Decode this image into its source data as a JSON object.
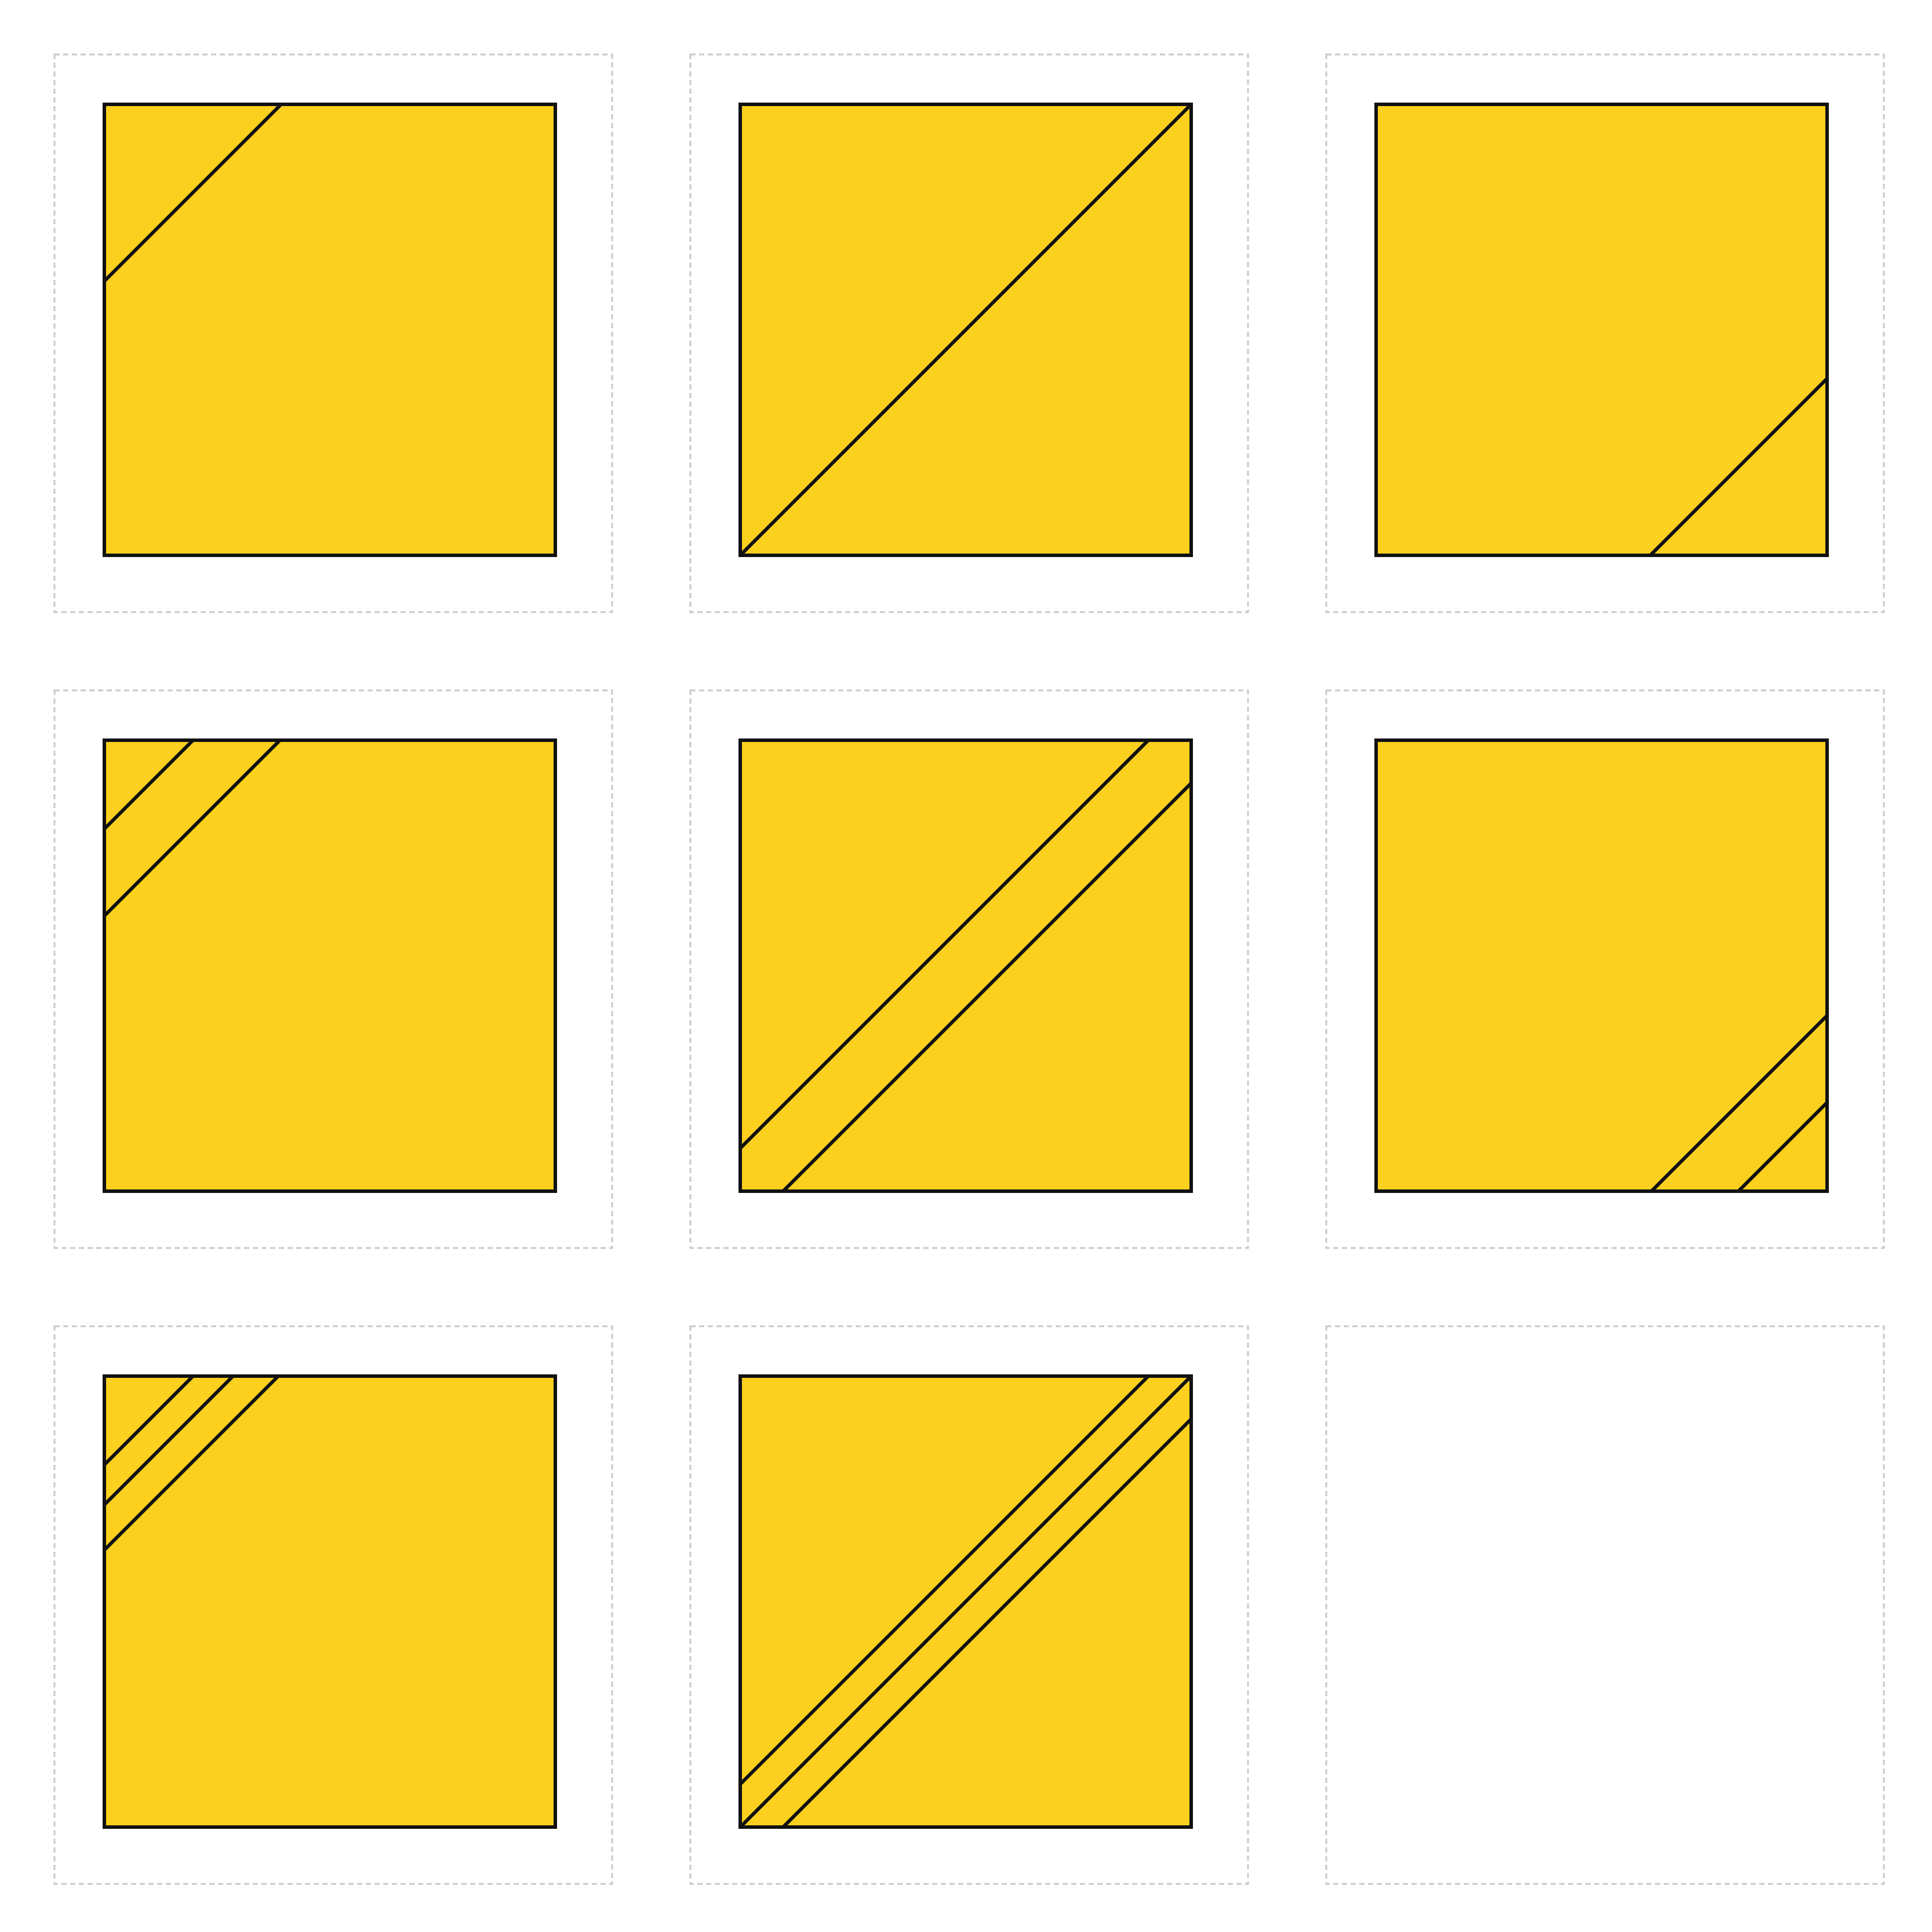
{
  "puzzle": {
    "fill_color": "#FCD01E",
    "stroke_color": "#111111",
    "cell_border_color": "#C8C8C8",
    "background_color": "#FFFFFF",
    "cells": [
      {
        "row": 1,
        "col": 1,
        "line_count": 1,
        "corner": "top-left",
        "empty": false
      },
      {
        "row": 1,
        "col": 2,
        "line_count": 1,
        "corner": "center",
        "empty": false
      },
      {
        "row": 1,
        "col": 3,
        "line_count": 1,
        "corner": "bottom-right",
        "empty": false
      },
      {
        "row": 2,
        "col": 1,
        "line_count": 2,
        "corner": "top-left",
        "empty": false
      },
      {
        "row": 2,
        "col": 2,
        "line_count": 2,
        "corner": "center",
        "empty": false
      },
      {
        "row": 2,
        "col": 3,
        "line_count": 2,
        "corner": "bottom-right",
        "empty": false
      },
      {
        "row": 3,
        "col": 1,
        "line_count": 3,
        "corner": "top-left",
        "empty": false
      },
      {
        "row": 3,
        "col": 2,
        "line_count": 3,
        "corner": "center",
        "empty": false
      },
      {
        "row": 3,
        "col": 3,
        "line_count": 0,
        "corner": "",
        "empty": true
      }
    ]
  }
}
